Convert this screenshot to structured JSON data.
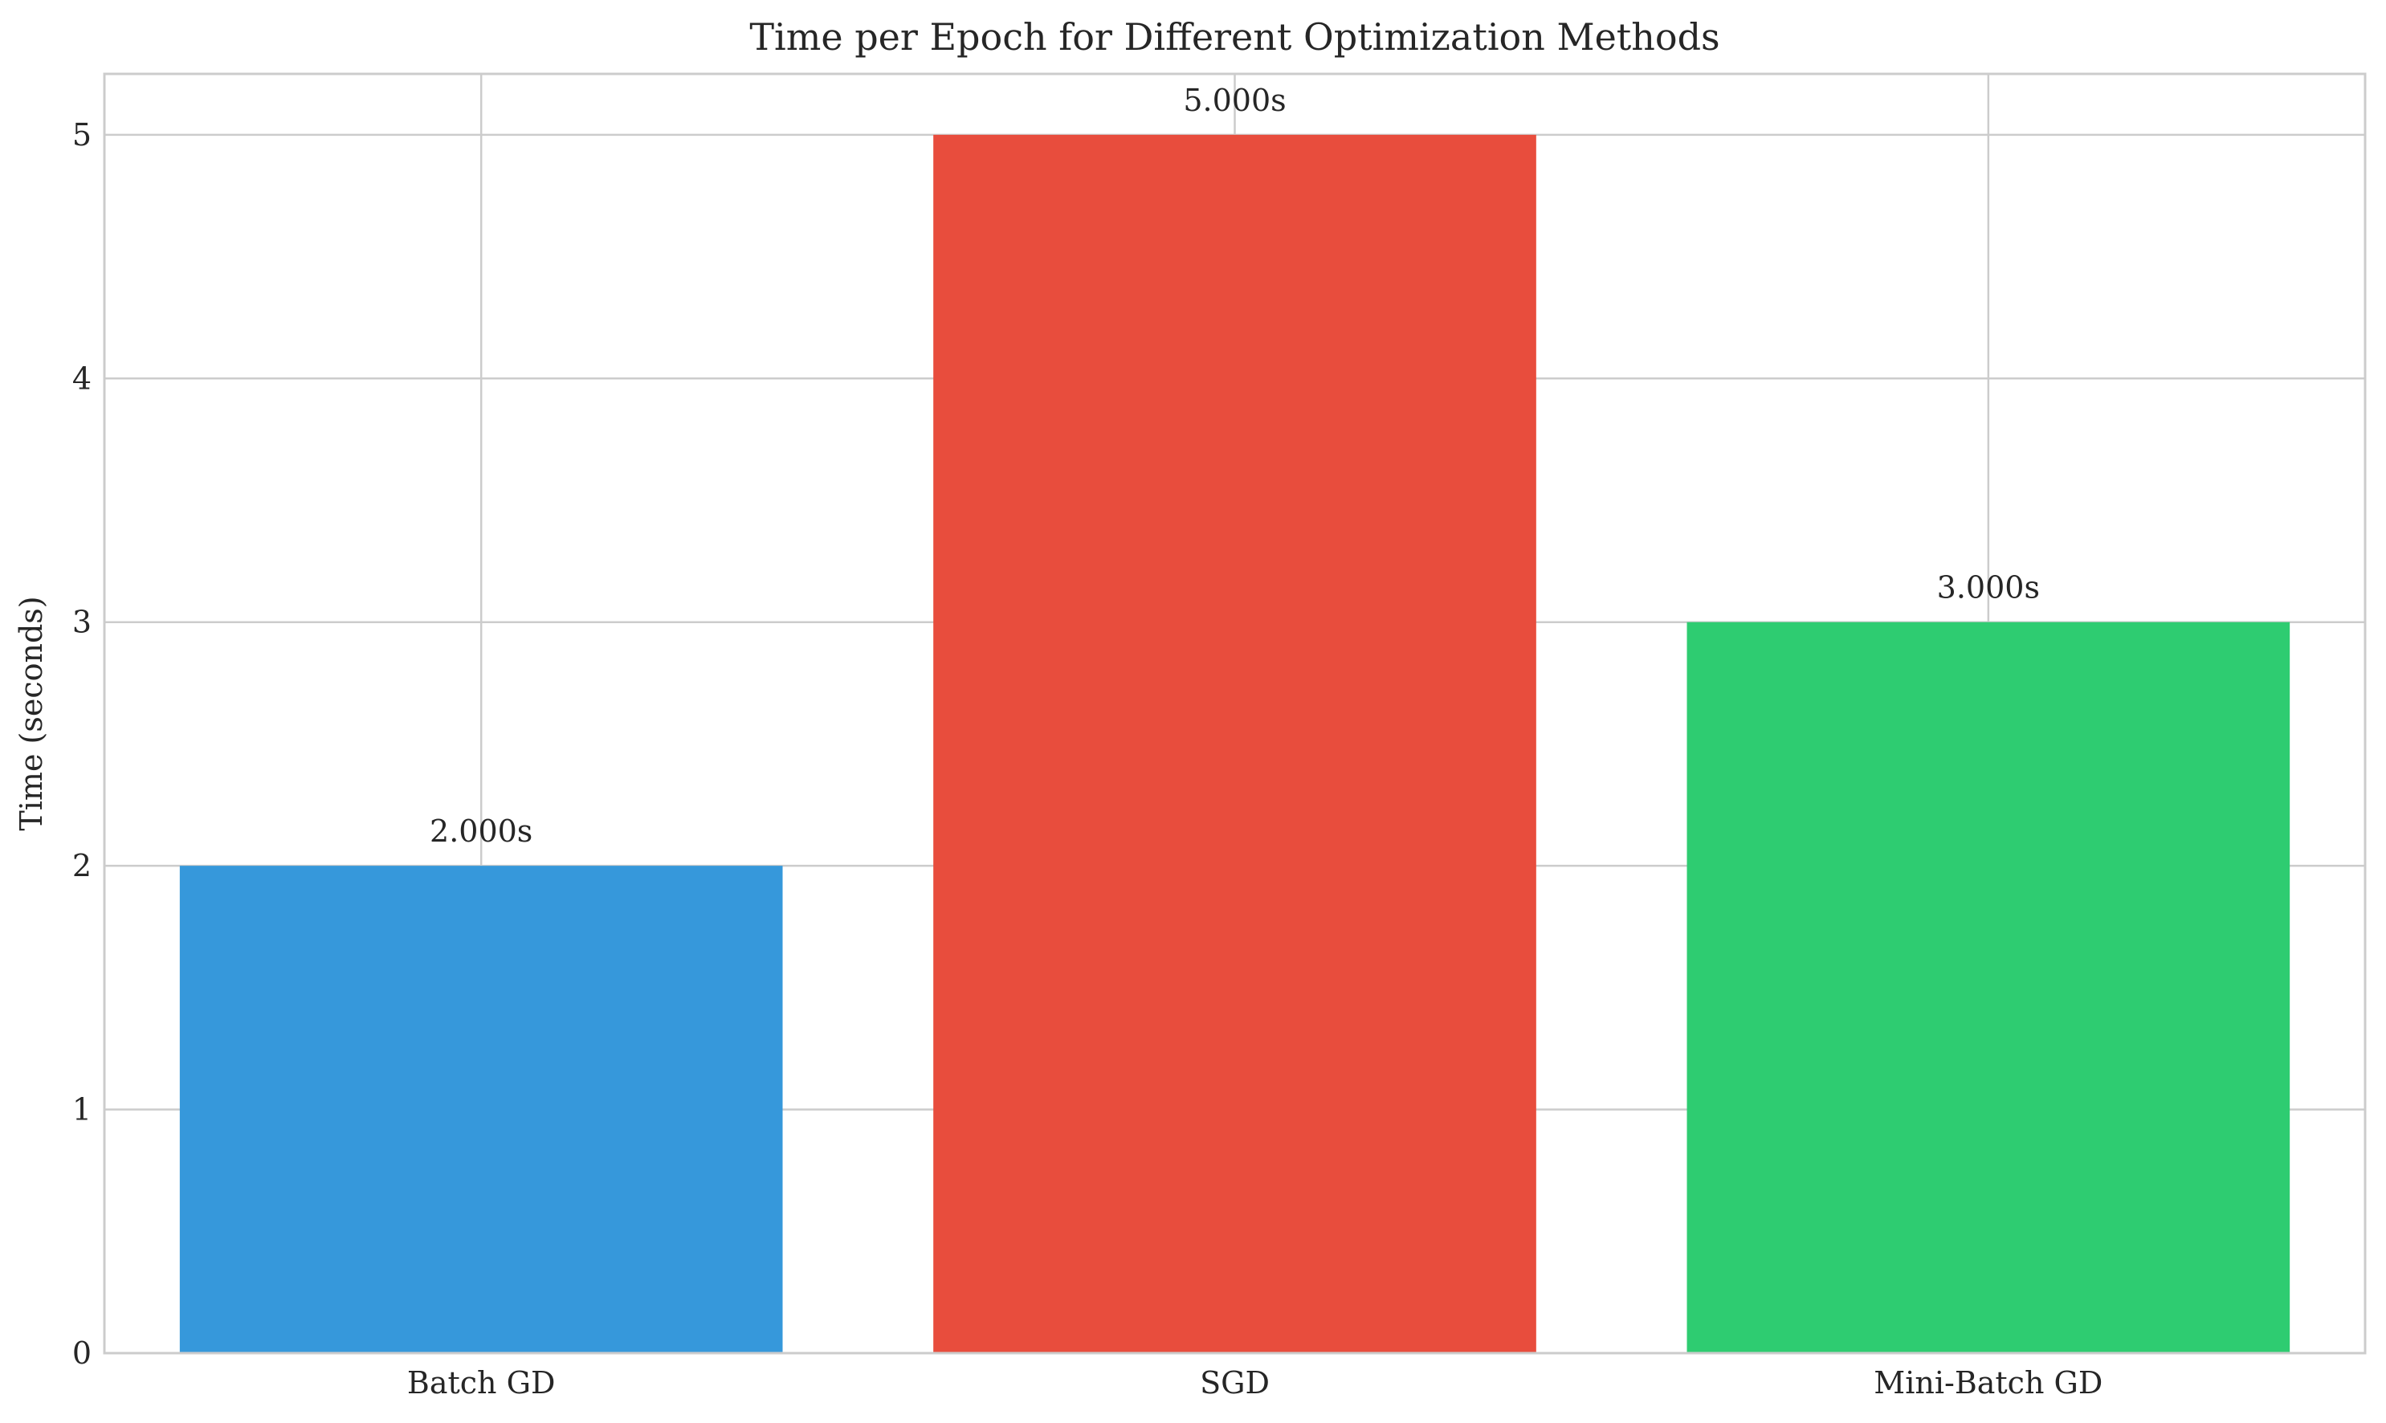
{
  "chart_data": {
    "type": "bar",
    "title": "Time per Epoch for Different Optimization Methods",
    "xlabel": "",
    "ylabel": "Time (seconds)",
    "categories": [
      "Batch GD",
      "SGD",
      "Mini-Batch GD"
    ],
    "values": [
      2.0,
      5.0,
      3.0
    ],
    "data_labels": [
      "2.000s",
      "5.000s",
      "3.000s"
    ],
    "colors": [
      "#3698db",
      "#e84d3d",
      "#2ecc71"
    ],
    "ylim": [
      0,
      5.25
    ],
    "yticks": [
      0,
      1,
      2,
      3,
      4,
      5
    ],
    "grid": true,
    "legend": "none"
  }
}
